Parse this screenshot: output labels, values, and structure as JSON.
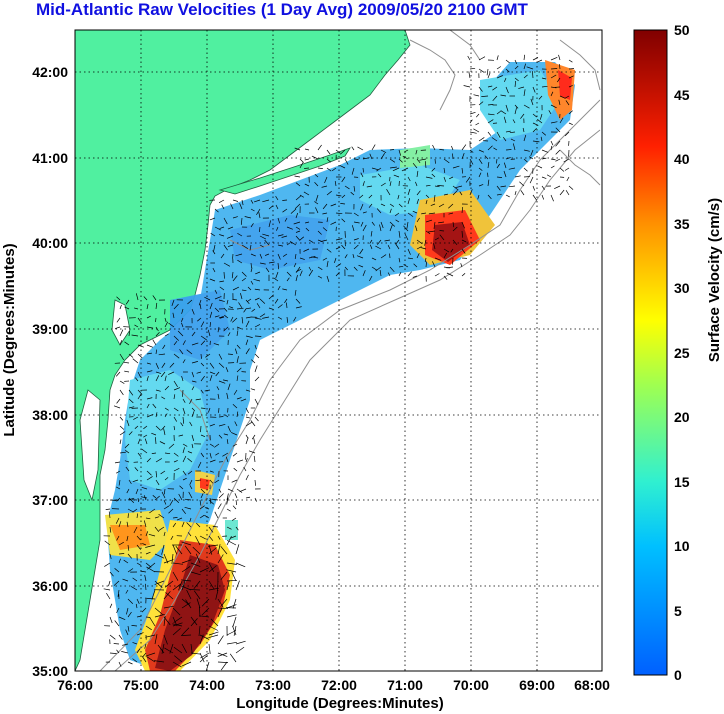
{
  "title": "Mid-Atlantic Raw Velocities (1 Day Avg) 2009/05/20 2100 GMT",
  "x_axis": {
    "label": "Longitude (Degrees:Minutes)",
    "ticks": [
      "76:00",
      "75:00",
      "74:00",
      "73:00",
      "72:00",
      "71:00",
      "70:00",
      "69:00",
      "68:00"
    ]
  },
  "y_axis": {
    "label": "Latitude (Degrees:Minutes)",
    "ticks": [
      "35:00",
      "36:00",
      "37:00",
      "38:00",
      "39:00",
      "40:00",
      "41:00",
      "42:00"
    ]
  },
  "colorbar": {
    "label": "Surface Velocity (cm/s)",
    "ticks": [
      "0",
      "5",
      "10",
      "15",
      "20",
      "25",
      "30",
      "35",
      "40",
      "45",
      "50"
    ],
    "min": 0,
    "max": 50
  },
  "colors": {
    "land": "#50f0a0",
    "ocean": "#ffffff",
    "title": "#1010e0",
    "low_speed": "#3fa0ff",
    "high_speed": "#800000"
  }
}
